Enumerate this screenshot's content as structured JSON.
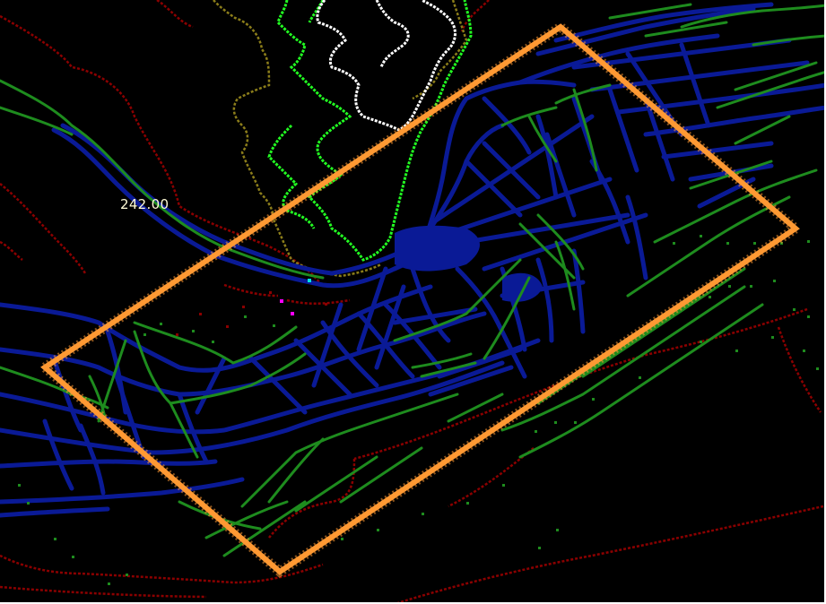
{
  "elevation_label": {
    "text": "242.00"
  },
  "colors": {
    "background": "#000000",
    "contour_lowest": "#8b0000",
    "contour_olive": "#8b7d1a",
    "contour_lime": "#22ff22",
    "contour_white": "#ffffff",
    "channel_blue": "#0a1a96",
    "network_green": "#1e8c1e",
    "boundary_orange": "#ff9933",
    "marker_cyan": "#00e5e5",
    "marker_magenta": "#ff00ff",
    "label_text": "#fffbd6"
  },
  "layers": [
    "contour-line-darkred",
    "contour-line-olive",
    "contour-line-lime",
    "contour-line-white",
    "channel-network-blue",
    "vegetation-network-green",
    "boundary-rectangle-orange"
  ]
}
